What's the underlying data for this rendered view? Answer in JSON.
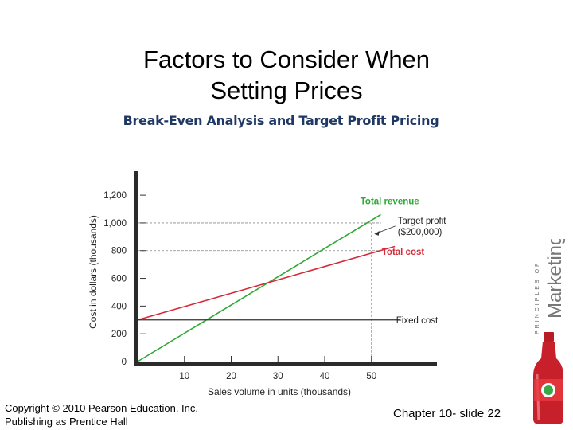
{
  "slide": {
    "title_line1": "Factors to Consider When",
    "title_line2": "Setting Prices",
    "subtitle": "Break-Even Analysis and Target Profit Pricing",
    "copyright_line1": "Copyright © 2010 Pearson Education, Inc.",
    "copyright_line2": "Publishing as Prentice Hall",
    "chapter": "Chapter 10- slide 22",
    "brand_small": "PRINCIPLES OF",
    "brand_large": "Marketing"
  },
  "chart_data": {
    "type": "line",
    "xlabel": "Sales volume in units (thousands)",
    "ylabel": "Cost in dollars (thousands)",
    "xlim": [
      0,
      64
    ],
    "ylim": [
      0,
      1350
    ],
    "x_ticks": [
      10,
      20,
      30,
      40,
      50
    ],
    "y_ticks": [
      0,
      200,
      400,
      600,
      800,
      1000,
      1200
    ],
    "y_tick_labels": [
      "0",
      "200",
      "400",
      "600",
      "800",
      "1,000",
      "1,200"
    ],
    "series": [
      {
        "name": "Total revenue",
        "color": "#2ea836",
        "points": [
          [
            0,
            0
          ],
          [
            52,
            1060
          ]
        ]
      },
      {
        "name": "Total cost",
        "color": "#d42b3a",
        "points": [
          [
            0,
            300
          ],
          [
            55,
            830
          ]
        ]
      },
      {
        "name": "Fixed cost",
        "color": "#333333",
        "points": [
          [
            0,
            300
          ],
          [
            56,
            300
          ]
        ]
      }
    ],
    "reference_lines_y": [
      1000,
      800
    ],
    "reference_line_x": 50,
    "annotations": {
      "revenue_label": "Total revenue",
      "cost_label": "Total cost",
      "fixed_label": "Fixed cost",
      "target_line1": "Target profit",
      "target_line2": "($200,000)"
    }
  }
}
